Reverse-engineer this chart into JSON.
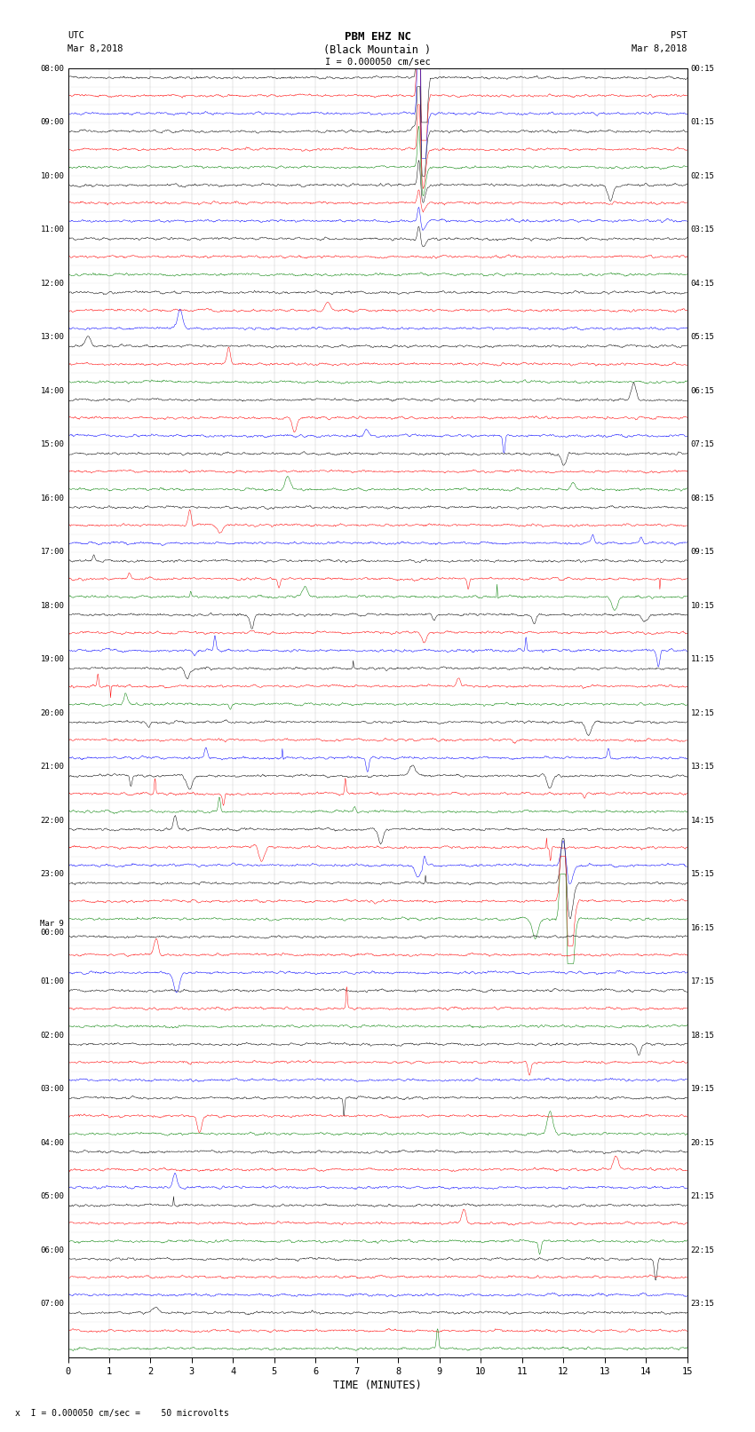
{
  "title_line1": "PBM EHZ NC",
  "title_line2": "(Black Mountain )",
  "scale_label": "I = 0.000050 cm/sec",
  "utc_label": "UTC",
  "pst_label": "PST",
  "date_left": "Mar 8,2018",
  "date_right": "Mar 8,2018",
  "xlabel": "TIME (MINUTES)",
  "footer": "x  I = 0.000050 cm/sec =    50 microvolts",
  "left_times_labeled": [
    0,
    3,
    6,
    9,
    12,
    15,
    18,
    21,
    24,
    27,
    30,
    33,
    36,
    39,
    42,
    45,
    48,
    51,
    54,
    57,
    60,
    63,
    66,
    69
  ],
  "left_labels": [
    "08:00",
    "09:00",
    "10:00",
    "11:00",
    "12:00",
    "13:00",
    "14:00",
    "15:00",
    "16:00",
    "17:00",
    "18:00",
    "19:00",
    "20:00",
    "21:00",
    "22:00",
    "23:00",
    "00:00",
    "01:00",
    "02:00",
    "03:00",
    "04:00",
    "05:00",
    "06:00",
    "07:00"
  ],
  "left_labels_prefix": [
    "",
    "",
    "",
    "",
    "",
    "",
    "",
    "",
    "",
    "",
    "",
    "",
    "",
    "",
    "",
    "",
    "Mar 9\n",
    "",
    "",
    "",
    "",
    "",
    "",
    ""
  ],
  "right_times_labeled": [
    0,
    3,
    6,
    9,
    12,
    15,
    18,
    21,
    24,
    27,
    30,
    33,
    36,
    39,
    42,
    45,
    48,
    51,
    54,
    57,
    60,
    63,
    66,
    69
  ],
  "right_labels": [
    "00:15",
    "01:15",
    "02:15",
    "03:15",
    "04:15",
    "05:15",
    "06:15",
    "07:15",
    "08:15",
    "09:15",
    "10:15",
    "11:15",
    "12:15",
    "13:15",
    "14:15",
    "15:15",
    "16:15",
    "17:15",
    "18:15",
    "19:15",
    "20:15",
    "21:15",
    "22:15",
    "23:15"
  ],
  "n_rows": 72,
  "n_minutes": 15,
  "bg_color": "#ffffff",
  "colors": [
    "#000000",
    "#ff0000",
    "#0000ff",
    "#008000"
  ],
  "seed": 42
}
